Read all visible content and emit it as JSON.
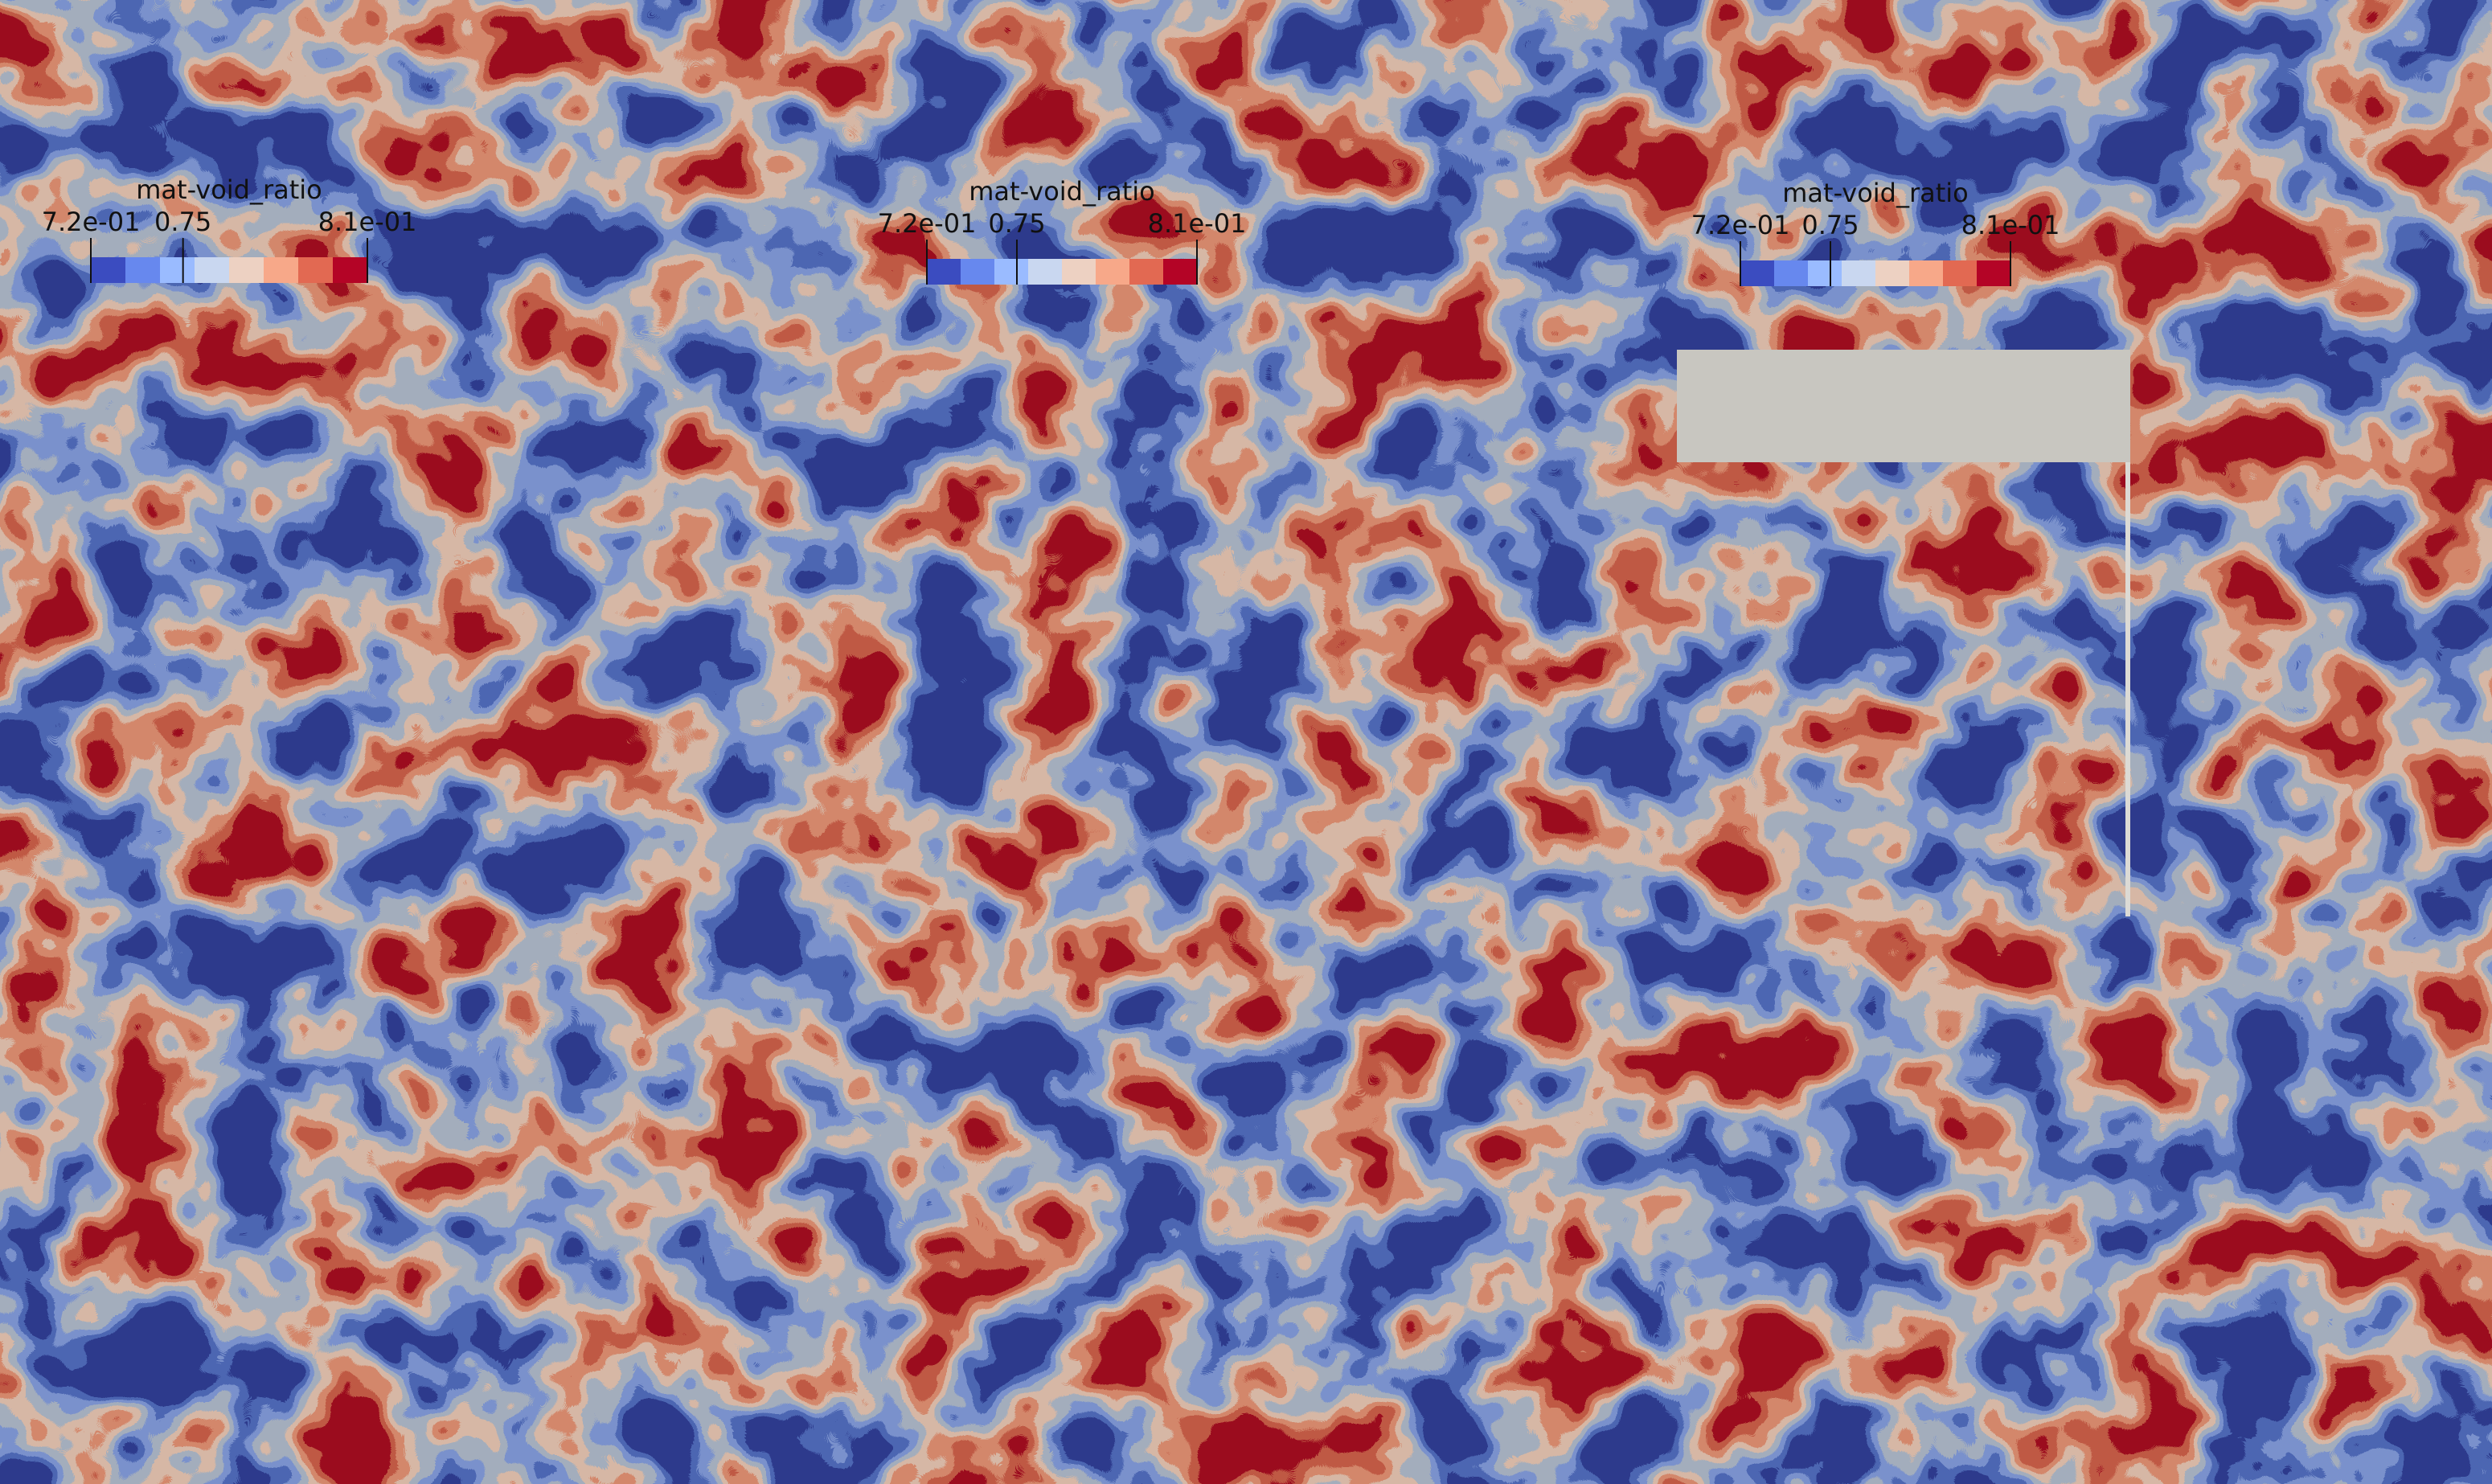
{
  "panels": [
    {
      "legend": {
        "title": "mat-void_ratio",
        "range": [
          0.72,
          0.81
        ],
        "ticks": [
          {
            "value": 0.72,
            "label": "7.2e-01"
          },
          0.75,
          {
            "value": 0.81,
            "label": "8.1e-01"
          }
        ],
        "colors": [
          "#3b4cc0",
          "#6788ee",
          "#9abbff",
          "#c9d7f0",
          "#edd1c2",
          "#f7a889",
          "#e26952",
          "#b40426"
        ]
      }
    },
    {
      "legend": {
        "title": "mat-void_ratio",
        "range": [
          0.72,
          0.81
        ],
        "ticks": [
          {
            "value": 0.72,
            "label": "7.2e-01"
          },
          0.75,
          {
            "value": 0.81,
            "label": "8.1e-01"
          }
        ],
        "colors": [
          "#3b4cc0",
          "#6788ee",
          "#9abbff",
          "#c9d7f0",
          "#edd1c2",
          "#f7a889",
          "#e26952",
          "#b40426"
        ]
      }
    },
    {
      "legend": {
        "title": "mat-void_ratio",
        "range": [
          0.72,
          0.81
        ],
        "ticks": [
          {
            "value": 0.72,
            "label": "7.2e-01"
          },
          0.75,
          {
            "value": 0.81,
            "label": "8.1e-01"
          }
        ],
        "colors": [
          "#3b4cc0",
          "#6788ee",
          "#9abbff",
          "#c9d7f0",
          "#edd1c2",
          "#f7a889",
          "#e26952",
          "#b40426"
        ]
      }
    }
  ]
}
